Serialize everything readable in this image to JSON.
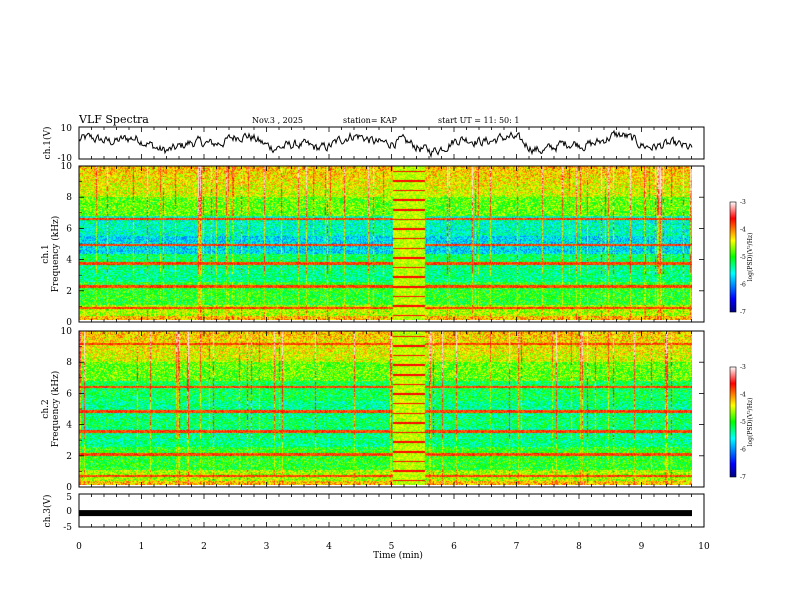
{
  "header": {
    "title": "VLF Spectra",
    "date": "Nov.3 , 2025",
    "station": "station= KAP",
    "start_ut": "start UT = 11: 50: 1"
  },
  "chart_data": [
    {
      "type": "line",
      "id": "ch1",
      "ylabel": "ch.1(V)",
      "ylim": [
        -10,
        10
      ],
      "yticks": [
        "10",
        "-10"
      ],
      "xlim": [
        0,
        10
      ]
    },
    {
      "type": "heatmap",
      "id": "spec1",
      "ylabel": "ch.1\nFrequency (kHz)",
      "ylabel_lines": [
        "ch.1",
        "Frequency (kHz)"
      ],
      "ylim": [
        0,
        10
      ],
      "yticks": [
        "0",
        "2",
        "4",
        "6",
        "8",
        "10"
      ],
      "xlim": [
        0,
        9.85
      ],
      "strong_lines_khz": [
        0.8,
        2.2,
        3.7,
        4.9,
        6.6
      ],
      "interference_block_min": [
        5.05,
        5.55
      ],
      "colorbar": {
        "label": "log(PSD)(V²/Hz)",
        "ticks": [
          "-3",
          "-4",
          "-5",
          "-6",
          "-7"
        ],
        "range": [
          -7,
          -3
        ]
      }
    },
    {
      "type": "heatmap",
      "id": "spec2",
      "ylabel": "ch.2\nFrequency (kHz)",
      "ylabel_lines": [
        "ch.2",
        "Frequency (kHz)"
      ],
      "ylim": [
        0,
        10
      ],
      "yticks": [
        "0",
        "2",
        "4",
        "6",
        "8",
        "10"
      ],
      "xlim": [
        0,
        9.85
      ],
      "strong_lines_khz": [
        0.6,
        2.0,
        3.5,
        4.8,
        6.4,
        9.2
      ],
      "interference_block_min": [
        5.05,
        5.55
      ],
      "colorbar": {
        "label": "log(PSD)(V²/Hz)",
        "ticks": [
          "-3",
          "-4",
          "-5",
          "-6",
          "-7"
        ],
        "range": [
          -7,
          -3
        ]
      }
    },
    {
      "type": "line",
      "id": "ch3",
      "ylabel": "ch.3(V)",
      "ylim": [
        -5,
        5
      ],
      "yticks": [
        "5",
        "0",
        "-5"
      ],
      "xlim": [
        0,
        10
      ],
      "level_v": -0.8
    }
  ],
  "xaxis": {
    "label": "Time (min)",
    "ticks": [
      "0",
      "1",
      "2",
      "3",
      "4",
      "5",
      "6",
      "7",
      "8",
      "9",
      "10"
    ]
  }
}
